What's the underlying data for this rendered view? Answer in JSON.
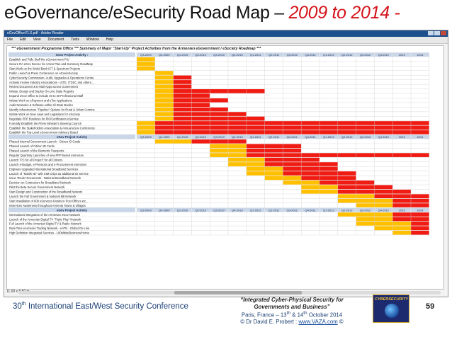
{
  "slide": {
    "title_main": "eGovernance/eSecurity Road Map – ",
    "title_accent": "2009 to 2014 -",
    "accent_color": "#d4141b",
    "footer_conference": "30",
    "footer_conference_sup": "th",
    "footer_conference_rest": " International East/West Security Conference",
    "footer_quote_1": "“Integrated Cyber-Physical Security for",
    "footer_quote_2": "Governments and Business”",
    "footer_place_a": "Paris, France – 13",
    "footer_place_sup1": "th",
    "footer_place_b": " & 14",
    "footer_place_sup2": "th",
    "footer_place_c": " October 2014",
    "footer_author": "©  Dr David E. Probert  :  ",
    "footer_url": "www.VAZA.com",
    "footer_copy_end": "  ©",
    "page_number": "59",
    "logo_text": "CYBERSECURITY"
  },
  "window": {
    "title": "eGovOfficeV1.6.pdf - Adobe Reader",
    "menu": [
      "File",
      "Edit",
      "View",
      "Document",
      "Tools",
      "Window",
      "Help"
    ],
    "status_size": "11.00 x 8.50 in"
  },
  "document": {
    "header": "***  eGovernment Programme Office  ***  Summary of Major \"Start-Up\" Project Activities from the Armenian eGovernment / eSociety Roadmap  ***",
    "columns": [
      "Q3-2009",
      "Q4-2009",
      "Q1-2010",
      "Q2-2010",
      "Q3-2010",
      "Q4-2010",
      "Q1-2011",
      "Q2-2011",
      "Q3-2011",
      "Q4-2011",
      "Q1-2012",
      "Q2-2012",
      "Q3-2012",
      "Q4-2012",
      "2013",
      "2014"
    ],
    "colors": {
      "red": "#f01c14",
      "yellow": "#ffc000",
      "grid": "#d0d0d0",
      "header_fill": "#c9d6e8"
    },
    "sections": [
      {
        "title": "eGov Project Activity :",
        "rows": [
          {
            "label": "Establish and Fully Staff the eGovernment PIU",
            "bars": [
              {
                "s": 0,
                "e": 1,
                "c": "y"
              }
            ]
          },
          {
            "label": "Secure RA eGov Decree for Action Plan and Summary RoadMap",
            "bars": [
              {
                "s": 0,
                "e": 1,
                "c": "y"
              }
            ]
          },
          {
            "label": "Start Work on the World Bank ICT & Spectrum Projects",
            "bars": [
              {
                "s": 0,
                "e": 1,
                "c": "y"
              }
            ]
          },
          {
            "label": "Public Launch & Press Conference on eGov/eSociety",
            "bars": [
              {
                "s": 1,
                "e": 2,
                "c": "y"
              }
            ]
          },
          {
            "label": "CyberSecurity Commission- Audit, Upgrades & Operations Centre",
            "bars": [
              {
                "s": 1,
                "e": 2,
                "c": "y"
              },
              {
                "s": 2,
                "e": 3,
                "c": "r"
              }
            ]
          },
          {
            "label": "Actively Involve Industry Associations - UITE, ITDSC and others....",
            "bars": [
              {
                "s": 1,
                "e": 2,
                "c": "y"
              },
              {
                "s": 2,
                "e": 3,
                "c": "r"
              }
            ]
          },
          {
            "label": "Review Document & E-Mail Apps across Government",
            "bars": [
              {
                "s": 1,
                "e": 2,
                "c": "y"
              },
              {
                "s": 2,
                "e": 3,
                "c": "r"
              }
            ]
          },
          {
            "label": "Initiate, Design and Deploy On-Line State Registry",
            "bars": [
              {
                "s": 1,
                "e": 2,
                "c": "y"
              },
              {
                "s": 2,
                "e": 7,
                "c": "r"
              }
            ]
          },
          {
            "label": "Expand eGov Office to include 20 to 30 Professional Staff",
            "bars": [
              {
                "s": 1,
                "e": 2,
                "c": "y"
              },
              {
                "s": 2,
                "e": 4,
                "c": "r"
              }
            ]
          },
          {
            "label": "Initiate Work on ePayment and eTax Applications",
            "bars": [
              {
                "s": 1,
                "e": 2,
                "c": "y"
              },
              {
                "s": 2,
                "e": 5,
                "c": "r"
              }
            ]
          },
          {
            "label": "Audit Networks & Software within all State Bodies",
            "bars": [
              {
                "s": 1,
                "e": 2,
                "c": "y"
              },
              {
                "s": 2,
                "e": 4,
                "c": "r"
              }
            ]
          },
          {
            "label": "Identify Infrastructure \"Pipeline\" Options for Rural & Urban Comms",
            "bars": [
              {
                "s": 1,
                "e": 2,
                "c": "y"
              },
              {
                "s": 2,
                "e": 5,
                "c": "r"
              }
            ]
          },
          {
            "label": "Initiate Work on New Laws and Legislation for eSociety",
            "bars": [
              {
                "s": 1,
                "e": 2,
                "c": "y"
              },
              {
                "s": 2,
                "e": 6,
                "c": "r"
              }
            ]
          },
          {
            "label": "Negotiate PPP Business for PKI/Certification eService",
            "bars": [
              {
                "s": 1,
                "e": 2,
                "c": "y"
              },
              {
                "s": 2,
                "e": 7,
                "c": "r"
              }
            ]
          },
          {
            "label": "Formally Establish the Prime Minister's Steering Council",
            "bars": [
              {
                "s": 0,
                "e": 1,
                "c": "y"
              },
              {
                "s": 1,
                "e": 16,
                "c": "r"
              }
            ]
          },
          {
            "label": "Establish the Stakeholders Association & Annual eGov Conference",
            "bars": [
              {
                "s": 0,
                "e": 1,
                "c": "y"
              },
              {
                "s": 1,
                "e": 16,
                "c": "r"
              }
            ]
          },
          {
            "label": "Establish the Top-Level eGovernment Advisory Board",
            "bars": [
              {
                "s": 0,
                "e": 1,
                "c": "y"
              },
              {
                "s": 1,
                "e": 16,
                "c": "r"
              }
            ]
          }
        ]
      },
      {
        "title": "eGov Project Activity",
        "rows": [
          {
            "label": "Phased Internal Government Launch - Citizen ID Cards",
            "bars": [
              {
                "s": 1,
                "e": 3,
                "c": "y"
              },
              {
                "s": 3,
                "e": 6,
                "c": "r"
              }
            ]
          },
          {
            "label": "Phased Launch of Citizen ID Cards",
            "bars": [
              {
                "s": 4,
                "e": 6,
                "c": "y"
              },
              {
                "s": 6,
                "e": 9,
                "c": "r"
              }
            ]
          },
          {
            "label": "Phased Launch of the Biometric Passports",
            "bars": [
              {
                "s": 4,
                "e": 6,
                "c": "y"
              },
              {
                "s": 6,
                "e": 9,
                "c": "r"
              }
            ]
          },
          {
            "label": "Regular Quarterly Launches of new PPP based eServices",
            "bars": [
              {
                "s": 4,
                "e": 6,
                "c": "y"
              },
              {
                "s": 6,
                "e": 16,
                "c": "r"
              }
            ]
          },
          {
            "label": "Launch \"PC for All Project\" for all Citizens",
            "bars": [
              {
                "s": 5,
                "e": 7,
                "c": "y"
              },
              {
                "s": 7,
                "e": 10,
                "c": "r"
              }
            ]
          },
          {
            "label": "Launch e-Budget, e-Pensions and e-Procurement eServices",
            "bars": [
              {
                "s": 5,
                "e": 7,
                "c": "y"
              },
              {
                "s": 7,
                "e": 11,
                "c": "r"
              }
            ]
          },
          {
            "label": "Engineer Upgraded International Broadband Services",
            "bars": [
              {
                "s": 6,
                "e": 8,
                "c": "y"
              },
              {
                "s": 8,
                "e": 11,
                "c": "r"
              }
            ]
          },
          {
            "label": "Launch of \"Mobile ID\" with SIM Chips as additional ID Service",
            "bars": [
              {
                "s": 6,
                "e": 8,
                "c": "y"
              },
              {
                "s": 8,
                "e": 12,
                "c": "r"
              }
            ]
          },
          {
            "label": "Issue Tender Documents - National Broadband Network",
            "bars": [
              {
                "s": 7,
                "e": 9,
                "c": "y"
              },
              {
                "s": 9,
                "e": 12,
                "c": "r"
              }
            ]
          },
          {
            "label": "Decision on Contractors for Broadband Network",
            "bars": [
              {
                "s": 8,
                "e": 10,
                "c": "y"
              },
              {
                "s": 10,
                "e": 13,
                "c": "r"
              }
            ]
          },
          {
            "label": "Pilot the Beta Secure Government Network",
            "bars": [
              {
                "s": 9,
                "e": 11,
                "c": "y"
              },
              {
                "s": 11,
                "e": 14,
                "c": "r"
              }
            ]
          },
          {
            "label": "Start Design and Construction of the Broadband Network",
            "bars": [
              {
                "s": 9,
                "e": 11,
                "c": "y"
              },
              {
                "s": 11,
                "e": 15,
                "c": "r"
              }
            ]
          },
          {
            "label": "Launch the Full Government & National BB Network",
            "bars": [
              {
                "s": 11,
                "e": 13,
                "c": "y"
              },
              {
                "s": 13,
                "e": 16,
                "c": "r"
              }
            ]
          },
          {
            "label": "Start Installation of 600 eServices Kiosks in Post Offices etc...",
            "bars": [
              {
                "s": 11,
                "e": 14,
                "c": "y"
              },
              {
                "s": 14,
                "e": 16,
                "c": "r"
              }
            ]
          },
          {
            "label": "eServices Awareness throughout Armenia Towns & Villages",
            "bars": [
              {
                "s": 12,
                "e": 14,
                "c": "y"
              },
              {
                "s": 14,
                "e": 16,
                "c": "r"
              }
            ]
          }
        ]
      },
      {
        "title": "eGov Project Activity",
        "rows": [
          {
            "label": "International Integration of the Armenian eGov Network",
            "bars": [
              {
                "s": 11,
                "e": 14,
                "c": "y"
              },
              {
                "s": 14,
                "e": 16,
                "c": "r"
              }
            ]
          },
          {
            "label": "Launch of the Armenian Digital TV \"Triple Play\" Network",
            "bars": [
              {
                "s": 12,
                "e": 14,
                "c": "y"
              },
              {
                "s": 14,
                "e": 16,
                "c": "r"
              }
            ]
          },
          {
            "label": "Full Launch of the Armenian Digital TV & Radio Network",
            "bars": [
              {
                "s": 12,
                "e": 15,
                "c": "y"
              },
              {
                "s": 15,
                "e": 16,
                "c": "r"
              }
            ]
          },
          {
            "label": "Real-Time eArmenia Trading Network - eATN - Global On-Line",
            "bars": [
              {
                "s": 13,
                "e": 15,
                "c": "y"
              },
              {
                "s": 15,
                "e": 16,
                "c": "r"
              }
            ]
          },
          {
            "label": "High Definition Integrated Services - 100Mbits/Business/Home",
            "bars": [
              {
                "s": 14,
                "e": 15,
                "c": "y"
              },
              {
                "s": 15,
                "e": 16,
                "c": "r"
              }
            ]
          }
        ]
      }
    ]
  }
}
